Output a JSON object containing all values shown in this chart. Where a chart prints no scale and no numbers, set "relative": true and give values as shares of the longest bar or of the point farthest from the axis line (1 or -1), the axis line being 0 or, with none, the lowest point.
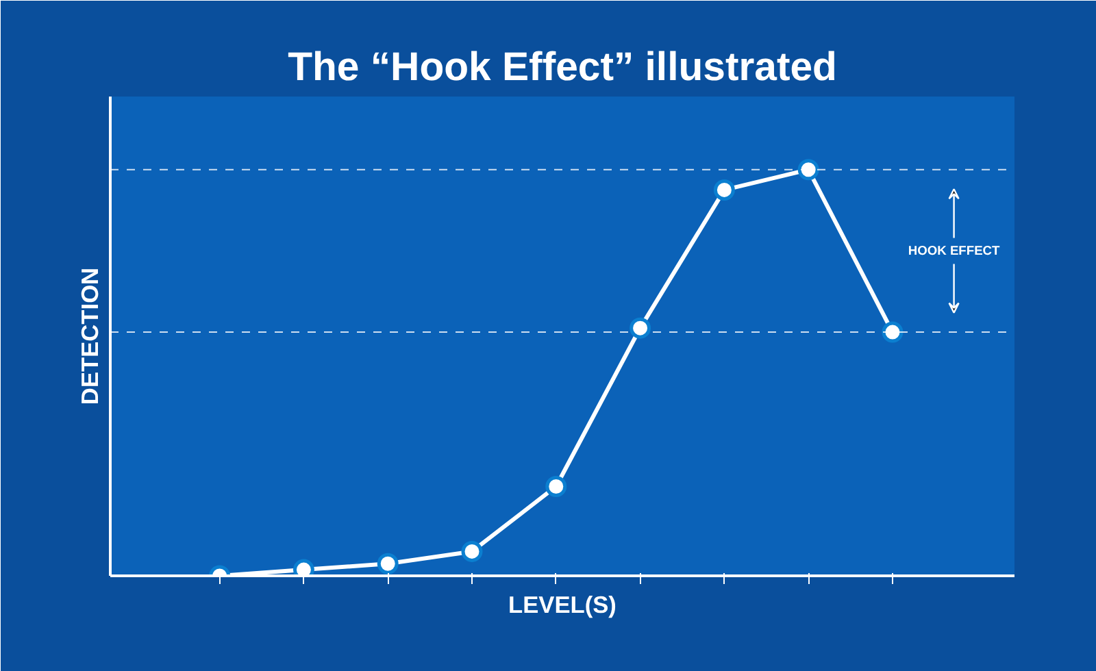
{
  "chart_data": {
    "type": "line",
    "title": "The “Hook Effect” illustrated",
    "xlabel": "LEVEL(S)",
    "ylabel": "DETECTION",
    "relative": true,
    "categories": [
      null,
      null,
      null,
      null,
      null,
      null,
      null,
      null,
      null
    ],
    "series": [
      {
        "color": "#ffffff",
        "values": [
          0,
          0.015,
          0.03,
          0.06,
          0.22,
          0.61,
          0.95,
          1.0,
          0.6
        ]
      }
    ],
    "ref_lines": [
      {
        "axis": "y",
        "value": 1.0,
        "line_style": "dashed",
        "color": "#ffffff"
      },
      {
        "axis": "y",
        "value": 0.6,
        "line_style": "dashed",
        "color": "#ffffff"
      }
    ],
    "annotations": [
      "HOOK EFFECT"
    ],
    "marker": "circle",
    "line_style": "solid",
    "grid": false
  }
}
